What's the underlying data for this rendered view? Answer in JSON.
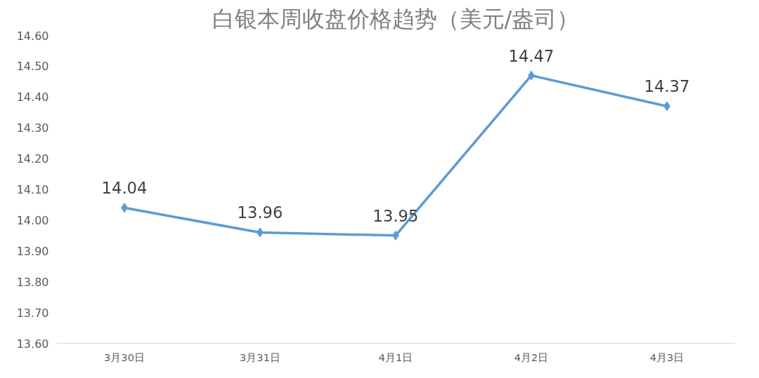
{
  "chart_data": {
    "type": "line",
    "title": "白银本周收盘价格趋势（美元/盎司）",
    "categories": [
      "3月30日",
      "3月31日",
      "4月1日",
      "4月2日",
      "4月3日"
    ],
    "series": [
      {
        "color": "#5b9bd5",
        "values": [
          14.04,
          13.96,
          13.95,
          14.47,
          14.37
        ]
      }
    ],
    "ylim": [
      13.6,
      14.6
    ],
    "yticks": [
      {
        "value": 13.6,
        "label": "13.60"
      },
      {
        "value": 13.7,
        "label": "13.70"
      },
      {
        "value": 13.8,
        "label": "13.80"
      },
      {
        "value": 13.9,
        "label": "13.90"
      },
      {
        "value": 14.0,
        "label": "14.00"
      },
      {
        "value": 14.1,
        "label": "14.10"
      },
      {
        "value": 14.2,
        "label": "14.20"
      },
      {
        "value": 14.3,
        "label": "14.30"
      },
      {
        "value": 14.4,
        "label": "14.40"
      },
      {
        "value": 14.5,
        "label": "14.50"
      },
      {
        "value": 14.6,
        "label": "14.60"
      }
    ],
    "marker": "diamond",
    "line_style": "solid",
    "data_labels": true,
    "grid": false
  }
}
